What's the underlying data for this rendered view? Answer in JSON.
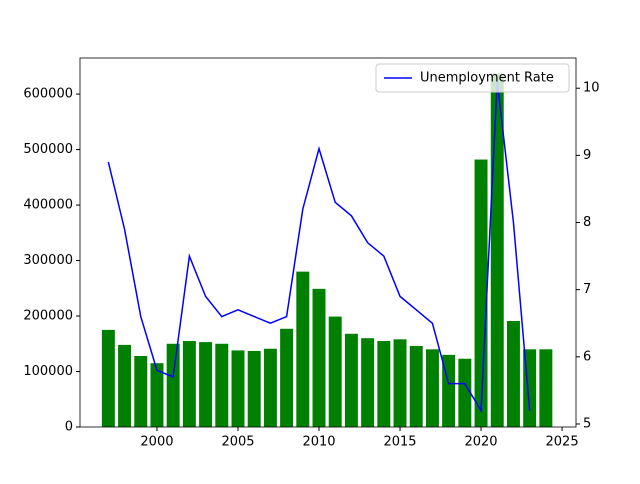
{
  "chart_data": {
    "type": "bar_line",
    "x": [
      1997,
      1998,
      1999,
      2000,
      2001,
      2002,
      2003,
      2004,
      2005,
      2006,
      2007,
      2008,
      2009,
      2010,
      2011,
      2012,
      2013,
      2014,
      2015,
      2016,
      2017,
      2018,
      2019,
      2020,
      2021,
      2022,
      2023,
      2024
    ],
    "series": [
      {
        "type": "bar",
        "color": "#008000",
        "values": [
          175000,
          148000,
          128000,
          115000,
          150000,
          155000,
          153000,
          150000,
          138000,
          137000,
          141000,
          177000,
          280000,
          249000,
          199000,
          168000,
          160000,
          155000,
          158000,
          146000,
          140000,
          130000,
          123000,
          482000,
          637000,
          191000,
          140000,
          140000
        ]
      },
      {
        "type": "line",
        "name": "Unemployment Rate",
        "color": "#0000ff",
        "axis": "y2",
        "x": [
          1997,
          1998,
          1999,
          2000,
          2001,
          2002,
          2003,
          2004,
          2005,
          2006,
          2007,
          2008,
          2009,
          2010,
          2011,
          2012,
          2013,
          2014,
          2015,
          2016,
          2017,
          2018,
          2019,
          2020,
          2021,
          2022,
          2023
        ],
        "values": [
          8.9,
          7.9,
          6.6,
          5.8,
          5.7,
          7.5,
          6.9,
          6.6,
          6.7,
          6.6,
          6.5,
          6.6,
          8.2,
          9.1,
          8.3,
          8.1,
          7.7,
          7.5,
          6.9,
          6.7,
          6.5,
          5.6,
          5.6,
          5.2,
          10.1,
          8.0,
          5.2
        ]
      }
    ],
    "xlim": [
      1995.25,
      2025.86
    ],
    "xticks": [
      2000,
      2005,
      2010,
      2015,
      2020,
      2025
    ],
    "ylim": [
      0,
      665000
    ],
    "yticks": [
      0,
      100000,
      200000,
      300000,
      400000,
      500000,
      600000
    ],
    "y2lim": [
      4.955,
      10.45
    ],
    "y2ticks": [
      5,
      6,
      7,
      8,
      9,
      10
    ],
    "legend": "upper right"
  }
}
